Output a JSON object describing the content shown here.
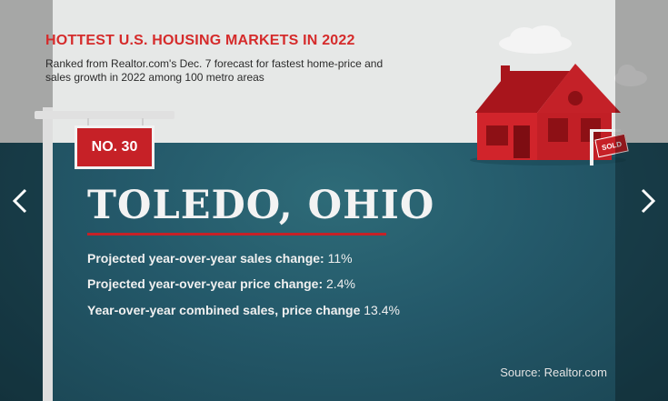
{
  "slide": {
    "heading": "HOTTEST U.S. HOUSING MARKETS IN 2022",
    "subtitle": "Ranked from Realtor.com's Dec. 7 forecast for fastest home-price and sales growth in 2022 among 100 metro areas",
    "rank": "NO. 30",
    "city": "TOLEDO, OHIO",
    "stats": [
      {
        "label": "Projected year-over-year sales change:",
        "value": "11%"
      },
      {
        "label": "Projected year-over-year price change:",
        "value": "2.4%"
      },
      {
        "label": "Year-over-year combined sales, price change",
        "value": "13.4%"
      }
    ],
    "sold_sign": "SOLD",
    "source": "Source: Realtor.com"
  },
  "nav": {
    "prev_icon": "chevron-left-icon",
    "next_icon": "chevron-right-icon"
  },
  "colors": {
    "accent_red": "#c62127",
    "sky": "#e6e8e7",
    "ground": "#24596a"
  }
}
